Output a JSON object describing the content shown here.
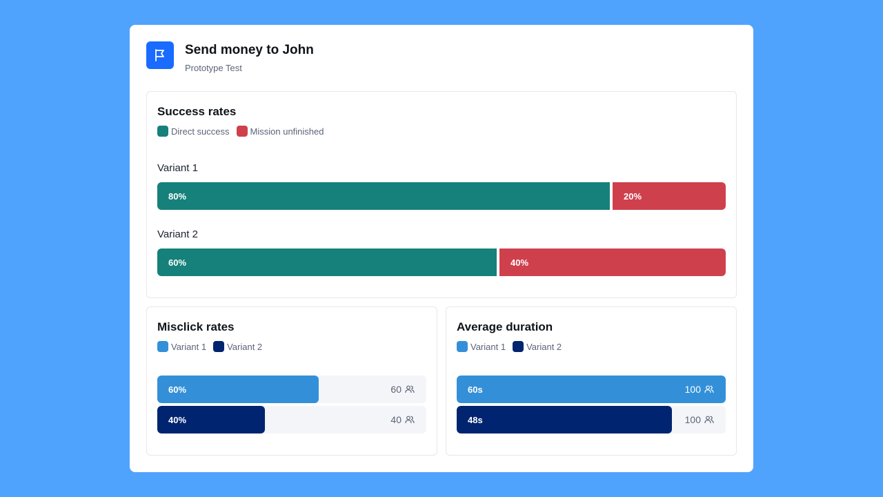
{
  "header": {
    "title": "Send money to John",
    "subtitle": "Prototype Test",
    "icon": "flag-icon",
    "icon_color": "#1a6bff"
  },
  "success_rates": {
    "title": "Success rates",
    "legend": [
      {
        "label": "Direct success",
        "color": "#16807a"
      },
      {
        "label": "Mission unfinished",
        "color": "#cf404d"
      }
    ],
    "variants": [
      {
        "label": "Variant 1",
        "success": 80,
        "success_label": "80%",
        "unfinished": 20,
        "unfinished_label": "20%"
      },
      {
        "label": "Variant 2",
        "success": 60,
        "success_label": "60%",
        "unfinished": 40,
        "unfinished_label": "40%"
      }
    ]
  },
  "misclick_rates": {
    "title": "Misclick rates",
    "legend": [
      {
        "label": "Variant 1",
        "color": "#3390d8"
      },
      {
        "label": "Variant 2",
        "color": "#00246f"
      }
    ],
    "bars": [
      {
        "value": 60,
        "label": "60%",
        "count": "60",
        "color": "#3390d8"
      },
      {
        "value": 40,
        "label": "40%",
        "count": "40",
        "color": "#00246f"
      }
    ],
    "max": 100
  },
  "average_duration": {
    "title": "Average duration",
    "legend": [
      {
        "label": "Variant 1",
        "color": "#3390d8"
      },
      {
        "label": "Variant 2",
        "color": "#00246f"
      }
    ],
    "bars": [
      {
        "value": 60,
        "label": "60s",
        "count": "100",
        "color": "#3390d8"
      },
      {
        "value": 48,
        "label": "48s",
        "count": "100",
        "color": "#00246f"
      }
    ],
    "max": 60
  }
}
